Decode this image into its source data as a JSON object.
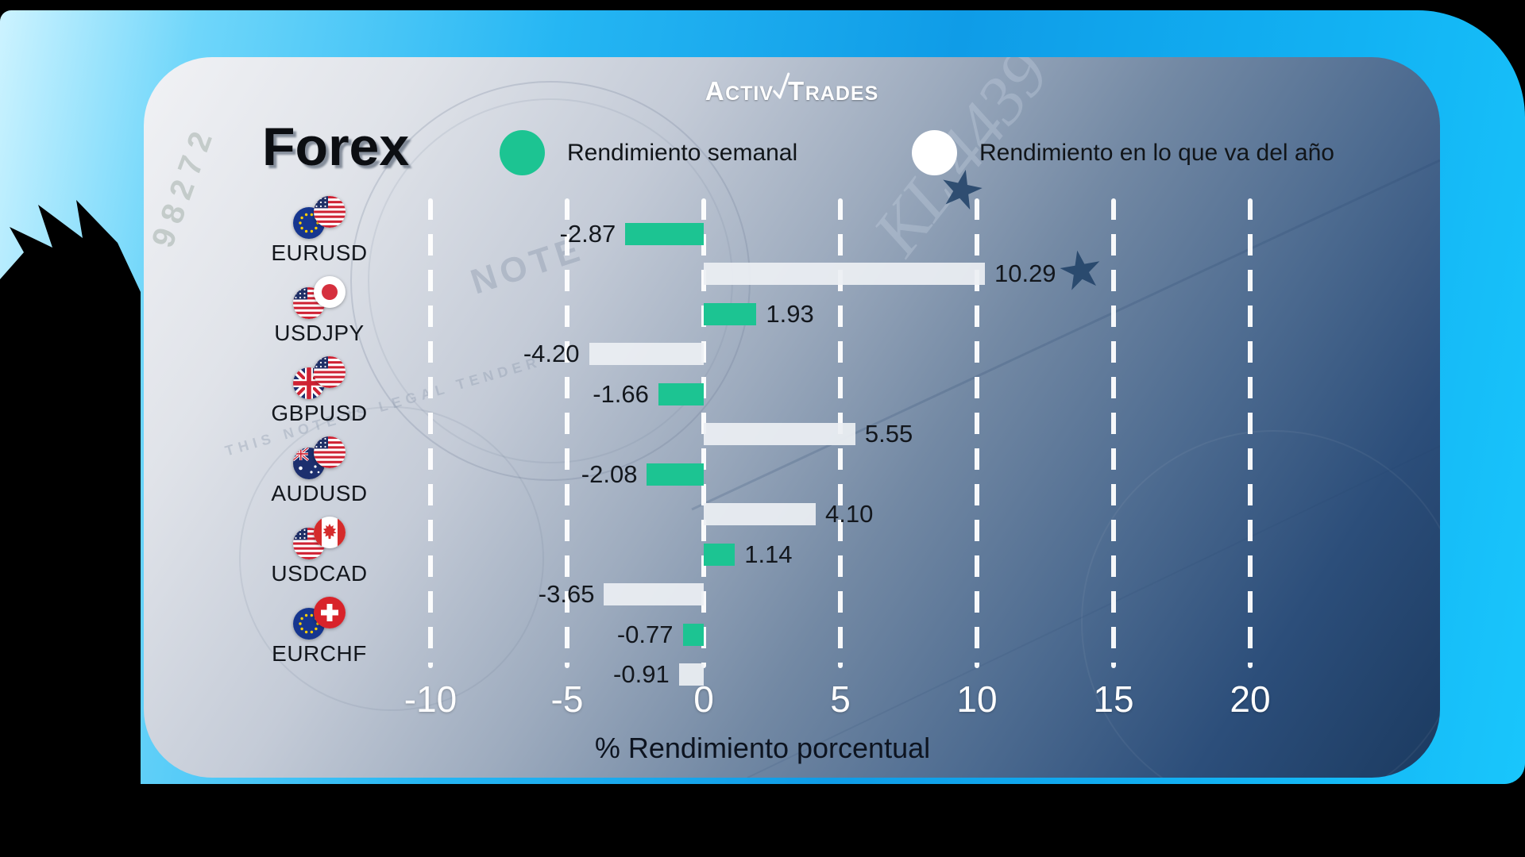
{
  "brand": {
    "part1": "Activ",
    "part2": "Trades"
  },
  "title": "Forex",
  "legend": [
    {
      "label": "Rendimiento semanal",
      "color": "#1cc492"
    },
    {
      "label": "Rendimiento en lo que va del año",
      "color": "#ffffff"
    }
  ],
  "chart_data": {
    "type": "bar",
    "orientation": "horizontal",
    "title": "Forex",
    "categories": [
      "EURUSD",
      "USDJPY",
      "GBPUSD",
      "AUDUSD",
      "USDCAD",
      "EURCHF"
    ],
    "series": [
      {
        "name": "Rendimiento semanal",
        "color": "#1cc492",
        "values": [
          -2.87,
          1.93,
          -1.66,
          -2.08,
          1.14,
          -0.77
        ]
      },
      {
        "name": "Rendimiento en lo que va del año",
        "color": "#eceff3",
        "values": [
          10.29,
          -4.2,
          5.55,
          4.1,
          -3.65,
          -0.91
        ]
      }
    ],
    "xticks": [
      -10,
      -5,
      0,
      5,
      10,
      15,
      20
    ],
    "xtick_labels": [
      "-10",
      "-5",
      "0",
      "5",
      "10",
      "15",
      "20"
    ],
    "xlabel": "% Rendimiento porcentual",
    "xlim": [
      -12.6,
      22.6
    ],
    "grid": {
      "style": "dashed",
      "color": "#ffffff",
      "orientation": "vertical"
    },
    "legend_position": "top"
  },
  "pairs": [
    {
      "code": "EURUSD",
      "flags": [
        "EU",
        "US"
      ],
      "weekly_label": "-2.87",
      "ytd_label": "10.29"
    },
    {
      "code": "USDJPY",
      "flags": [
        "US",
        "JP"
      ],
      "weekly_label": "1.93",
      "ytd_label": "-4.20"
    },
    {
      "code": "GBPUSD",
      "flags": [
        "GB",
        "US"
      ],
      "weekly_label": "-1.66",
      "ytd_label": "5.55"
    },
    {
      "code": "AUDUSD",
      "flags": [
        "AU",
        "US"
      ],
      "weekly_label": "-2.08",
      "ytd_label": "4.10"
    },
    {
      "code": "USDCAD",
      "flags": [
        "US",
        "CA"
      ],
      "weekly_label": "1.14",
      "ytd_label": "-3.65"
    },
    {
      "code": "EURCHF",
      "flags": [
        "EU",
        "CH"
      ],
      "weekly_label": "-0.77",
      "ytd_label": "-0.91"
    }
  ],
  "colors": {
    "accent_green": "#1cc492",
    "bar_white": "#eceff3",
    "frame_cyan": "#18bdf6",
    "card_dark": "#1b3a60",
    "card_light": "#f0f1f4"
  }
}
